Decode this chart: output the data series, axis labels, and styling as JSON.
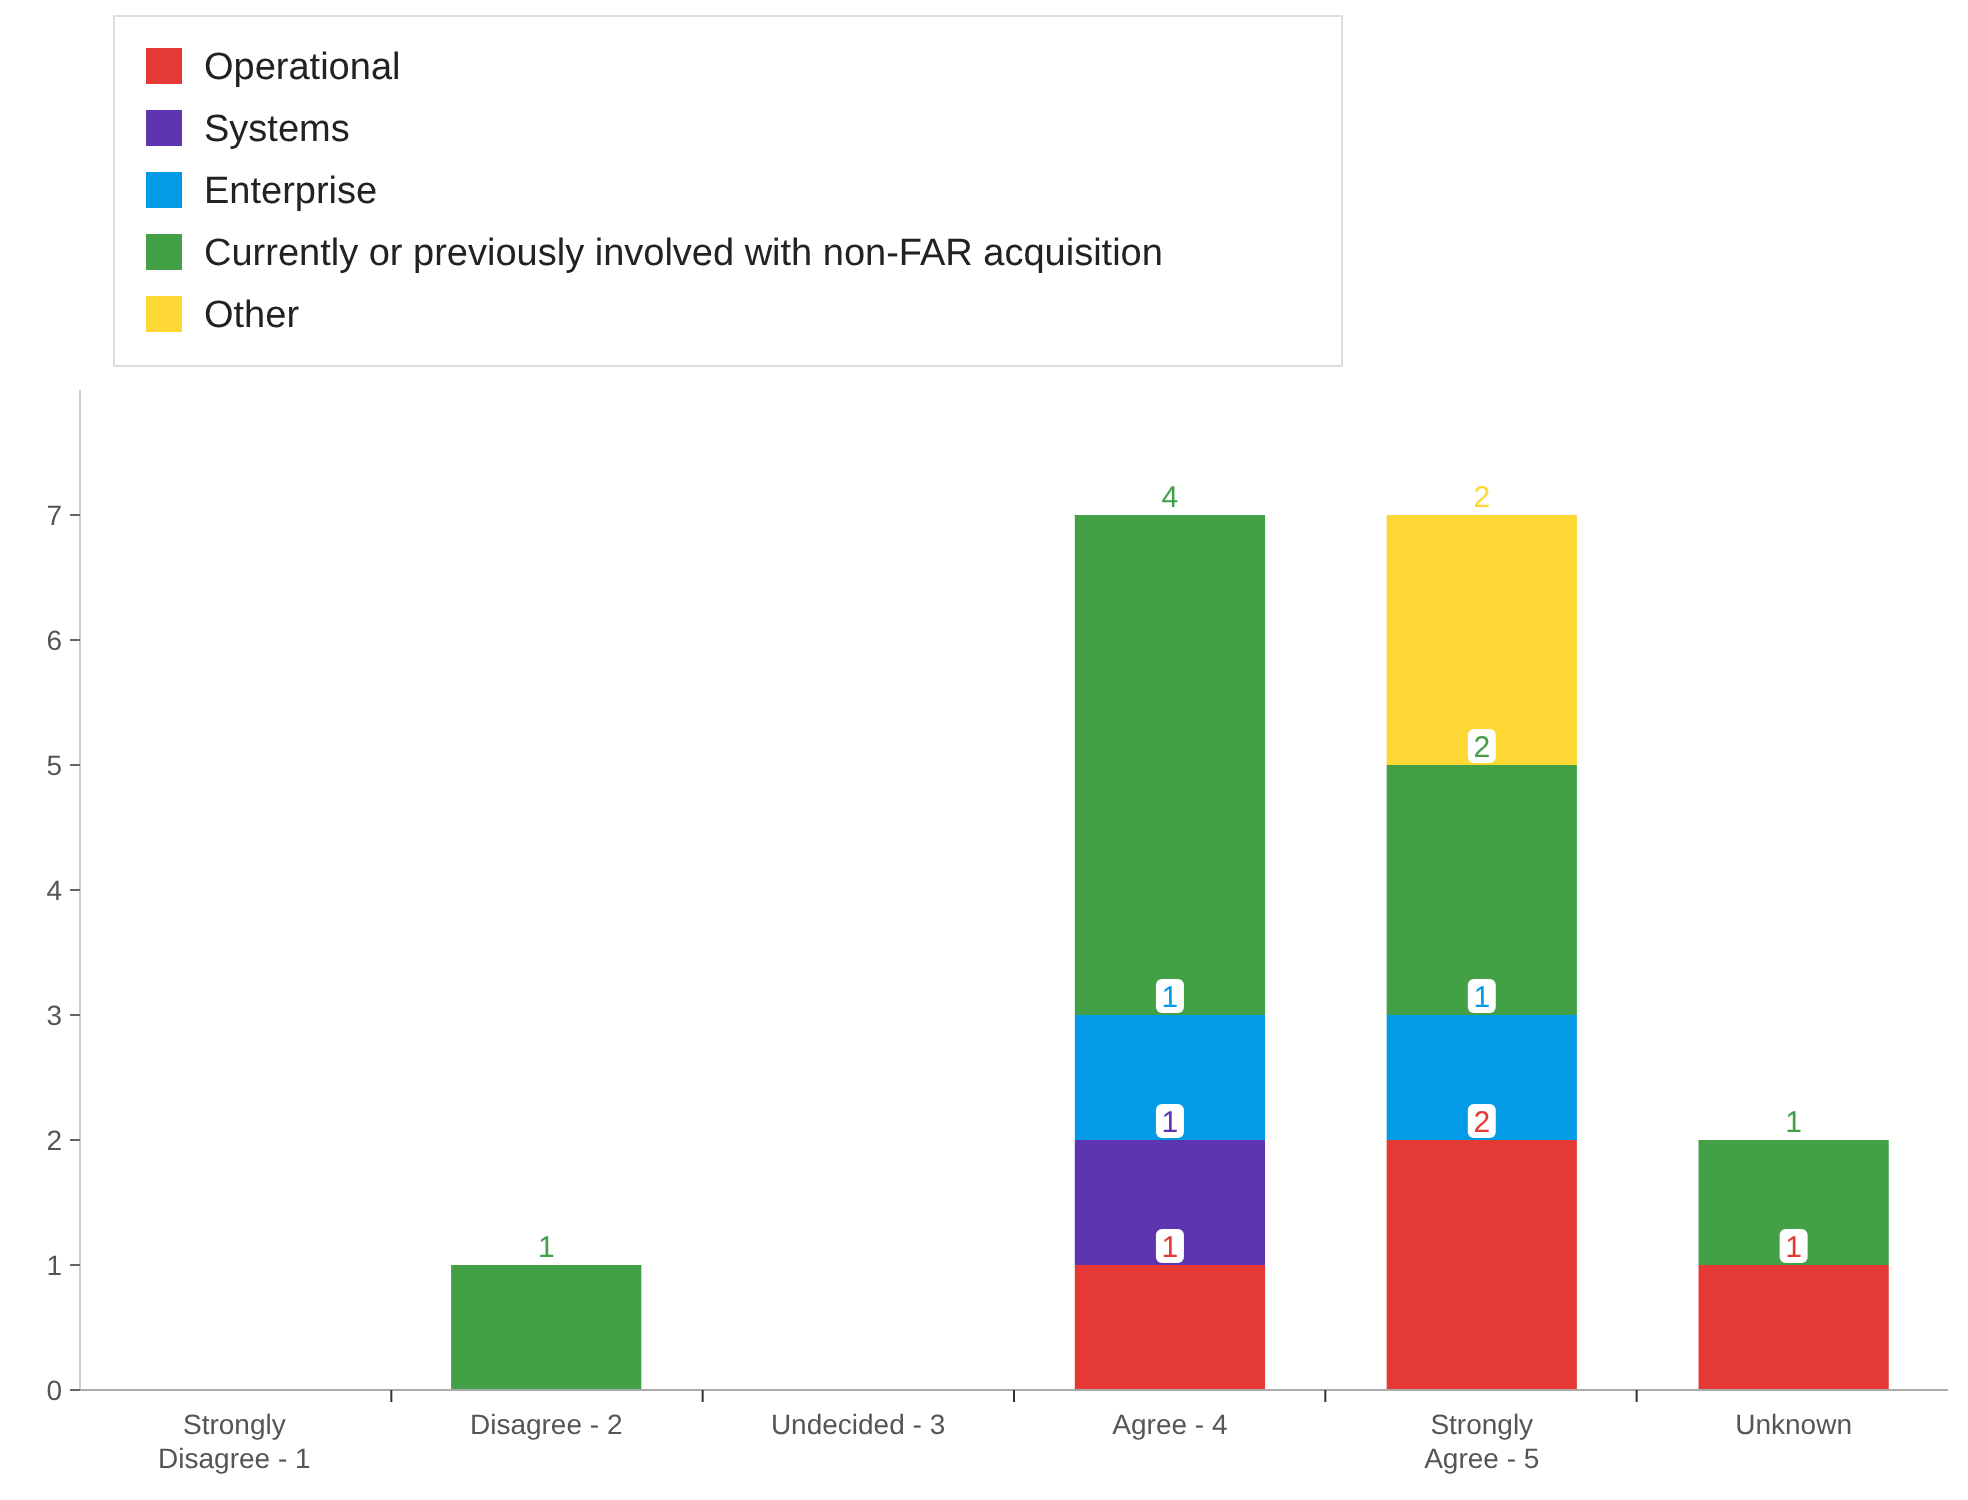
{
  "chart_data": {
    "type": "bar",
    "stacked": true,
    "categories": [
      "Strongly Disagree - 1",
      "Disagree - 2",
      "Undecided - 3",
      "Agree - 4",
      "Strongly Agree - 5",
      "Unknown"
    ],
    "series": [
      {
        "name": "Operational",
        "color": "#e53935",
        "values": [
          null,
          null,
          null,
          1,
          2,
          1
        ]
      },
      {
        "name": "Systems",
        "color": "#5e35b1",
        "values": [
          null,
          null,
          null,
          1,
          null,
          null
        ]
      },
      {
        "name": "Enterprise",
        "color": "#039be5",
        "values": [
          null,
          null,
          null,
          1,
          1,
          null
        ]
      },
      {
        "name": "Currently or previously involved with non-FAR acquisition",
        "color": "#43a047",
        "values": [
          null,
          1,
          null,
          4,
          2,
          1
        ]
      },
      {
        "name": "Other",
        "color": "#fdd835",
        "values": [
          null,
          null,
          null,
          null,
          2,
          null
        ]
      }
    ],
    "ylim": [
      0,
      8
    ],
    "yticks": [
      0,
      1,
      2,
      3,
      4,
      5,
      6,
      7
    ],
    "data_labels": true,
    "legend": "top left"
  }
}
